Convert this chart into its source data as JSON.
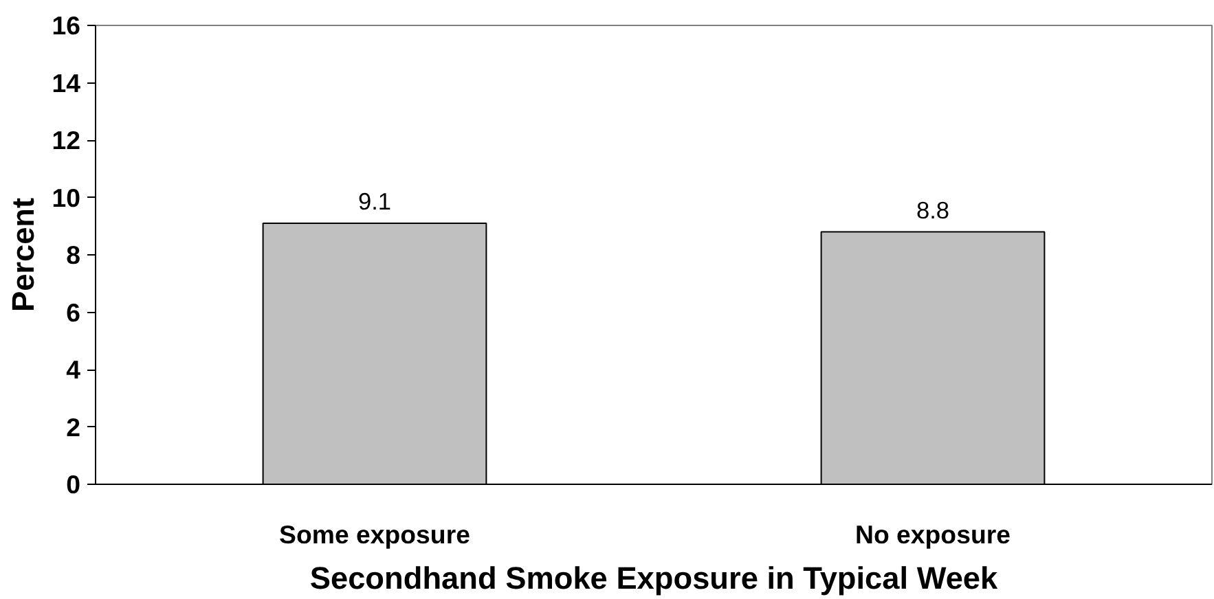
{
  "chart_data": {
    "type": "bar",
    "xlabel": "Secondhand Smoke Exposure in Typical Week",
    "ylabel": "Percent",
    "categories": [
      "Some exposure",
      "No exposure"
    ],
    "series": [
      {
        "color": "#c0c0c0",
        "values": [
          9.1,
          8.8
        ]
      }
    ],
    "ylim": [
      0,
      16
    ],
    "yticks": [
      0,
      2,
      4,
      6,
      8,
      10,
      12,
      14,
      16
    ],
    "grid": false,
    "data_labels": true
  }
}
